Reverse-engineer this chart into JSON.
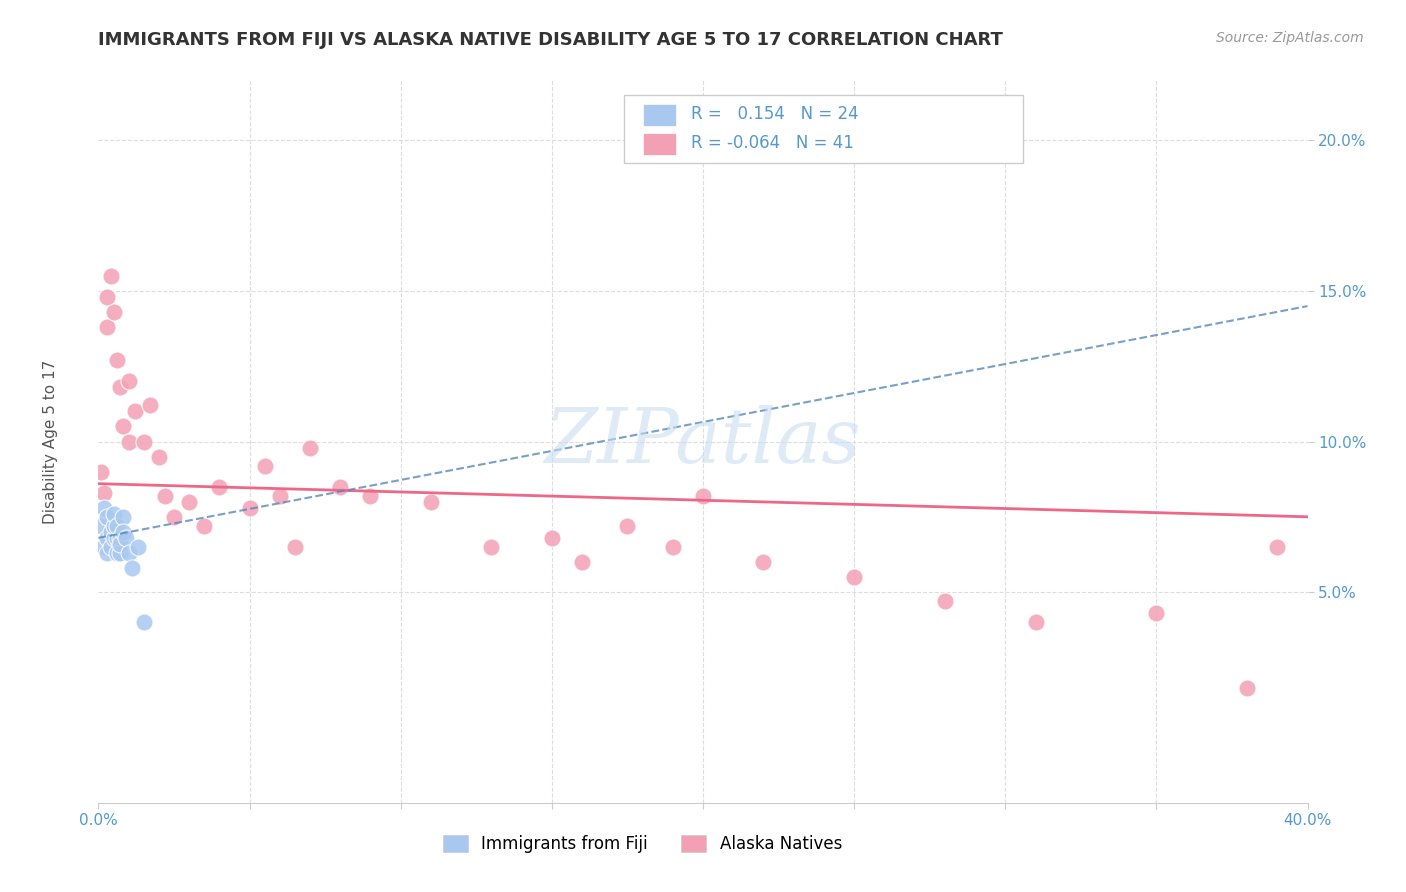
{
  "title": "IMMIGRANTS FROM FIJI VS ALASKA NATIVE DISABILITY AGE 5 TO 17 CORRELATION CHART",
  "source": "Source: ZipAtlas.com",
  "ylabel": "Disability Age 5 to 17",
  "xlabel": "",
  "xlim": [
    0.0,
    0.4
  ],
  "ylim": [
    -0.02,
    0.22
  ],
  "r_fiji": 0.154,
  "n_fiji": 24,
  "r_alaska": -0.064,
  "n_alaska": 41,
  "fiji_color": "#a8c8f0",
  "alaska_color": "#f4a0b4",
  "fiji_line_color": "#5588bb",
  "alaska_line_color": "#ee6688",
  "background_color": "#ffffff",
  "grid_color": "#dddddd",
  "watermark": "ZIPatlas",
  "watermark_color": "#c8ddf0",
  "fiji_points_x": [
    0.001,
    0.002,
    0.002,
    0.003,
    0.003,
    0.003,
    0.004,
    0.004,
    0.005,
    0.005,
    0.005,
    0.006,
    0.006,
    0.006,
    0.007,
    0.007,
    0.007,
    0.008,
    0.008,
    0.009,
    0.01,
    0.011,
    0.013,
    0.015
  ],
  "fiji_points_y": [
    0.072,
    0.078,
    0.065,
    0.068,
    0.075,
    0.063,
    0.065,
    0.07,
    0.068,
    0.072,
    0.076,
    0.063,
    0.068,
    0.072,
    0.068,
    0.063,
    0.066,
    0.075,
    0.07,
    0.068,
    0.063,
    0.058,
    0.065,
    0.04
  ],
  "alaska_points_x": [
    0.001,
    0.002,
    0.003,
    0.003,
    0.004,
    0.005,
    0.006,
    0.007,
    0.008,
    0.01,
    0.01,
    0.012,
    0.015,
    0.017,
    0.02,
    0.022,
    0.025,
    0.03,
    0.035,
    0.04,
    0.05,
    0.055,
    0.06,
    0.065,
    0.07,
    0.08,
    0.09,
    0.11,
    0.13,
    0.15,
    0.16,
    0.175,
    0.19,
    0.2,
    0.22,
    0.25,
    0.28,
    0.31,
    0.35,
    0.38,
    0.39
  ],
  "alaska_points_y": [
    0.09,
    0.083,
    0.148,
    0.138,
    0.155,
    0.143,
    0.127,
    0.118,
    0.105,
    0.1,
    0.12,
    0.11,
    0.1,
    0.112,
    0.095,
    0.082,
    0.075,
    0.08,
    0.072,
    0.085,
    0.078,
    0.092,
    0.082,
    0.065,
    0.098,
    0.085,
    0.082,
    0.08,
    0.065,
    0.068,
    0.06,
    0.072,
    0.065,
    0.082,
    0.06,
    0.055,
    0.047,
    0.04,
    0.043,
    0.018,
    0.065
  ],
  "title_color": "#333333",
  "axis_label_color": "#555555",
  "tick_color": "#5599cc"
}
